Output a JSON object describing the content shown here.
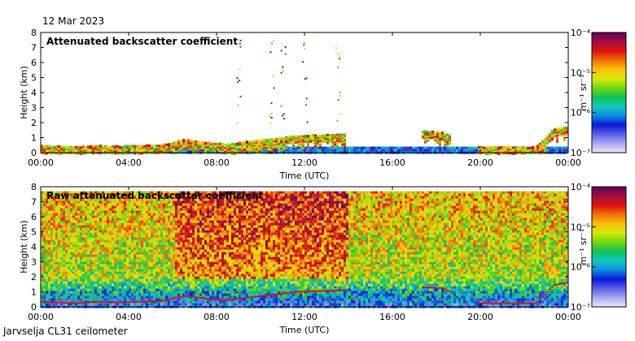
{
  "header": {
    "date": "12 Mar 2023"
  },
  "footer": {
    "caption": "Jarvselja CL31 ceilometer"
  },
  "colors": {
    "frame": "#000000",
    "colormap": [
      "#e8e8f8",
      "#a8aaf0",
      "#5a5ee8",
      "#0a18d8",
      "#0a8fe0",
      "#10c8c0",
      "#10c050",
      "#70d810",
      "#d8e808",
      "#f8c008",
      "#f07008",
      "#e01010",
      "#a01040",
      "#600060"
    ]
  },
  "chart_data": [
    {
      "type": "heatmap",
      "title": "Attenuated backscatter coefficient",
      "xlabel": "Time (UTC)",
      "ylabel": "Height (km)",
      "xticks": [
        "00:00",
        "04:00",
        "08:00",
        "12:00",
        "16:00",
        "20:00",
        "00:00"
      ],
      "xlim_hours": [
        0,
        24
      ],
      "ylim": [
        0,
        8
      ],
      "yticks": [
        "0",
        "1",
        "2",
        "3",
        "4",
        "5",
        "6",
        "7",
        "8"
      ],
      "colorbar": {
        "labels": [
          "10⁻⁴",
          "10⁻⁵",
          "10⁻⁶",
          "10⁻⁷"
        ],
        "units": "m⁻¹ sr⁻¹",
        "log10_range": [
          -7,
          -4
        ]
      },
      "features": {
        "cloud_base_km": [
          [
            0,
            0.4
          ],
          [
            1.5,
            0.3
          ],
          [
            2.5,
            0.4
          ],
          [
            3.5,
            0.35
          ],
          [
            4.5,
            0.4
          ],
          [
            5.5,
            0.45
          ],
          [
            6.5,
            0.8
          ],
          [
            7.5,
            0.6
          ],
          [
            8.5,
            0.5
          ],
          [
            9.5,
            0.7
          ],
          [
            10.5,
            0.85
          ],
          [
            11.5,
            1.05
          ],
          [
            12.5,
            1.1
          ],
          [
            13.5,
            1.15
          ],
          [
            17.5,
            1.35
          ],
          [
            18.2,
            1.3
          ],
          [
            20.0,
            0.3
          ],
          [
            22.5,
            0.3
          ],
          [
            23.3,
            1.5
          ],
          [
            24,
            1.7
          ]
        ],
        "aerosol_top_km": 0.4,
        "high_cloud_hours": [
          9,
          10.5,
          11,
          12,
          13.5
        ]
      }
    },
    {
      "type": "heatmap",
      "title": "Raw attenuated backscatter coefficient",
      "xlabel": "Time (UTC)",
      "ylabel": "Height (km)",
      "xticks": [
        "00:00",
        "04:00",
        "08:00",
        "12:00",
        "16:00",
        "20:00",
        "00:00"
      ],
      "xlim_hours": [
        0,
        24
      ],
      "ylim": [
        0,
        8
      ],
      "yticks": [
        "0",
        "1",
        "2",
        "3",
        "4",
        "5",
        "6",
        "7",
        "8"
      ],
      "colorbar": {
        "labels": [
          "10⁻⁴",
          "10⁻⁵",
          "10⁻⁶",
          "10⁻⁷"
        ],
        "units": "m⁻¹ sr⁻¹",
        "log10_range": [
          -7,
          -4
        ]
      },
      "features": {
        "noisy_daytime_hours": [
          6,
          14
        ],
        "noise_top_km": 7.7
      }
    }
  ]
}
